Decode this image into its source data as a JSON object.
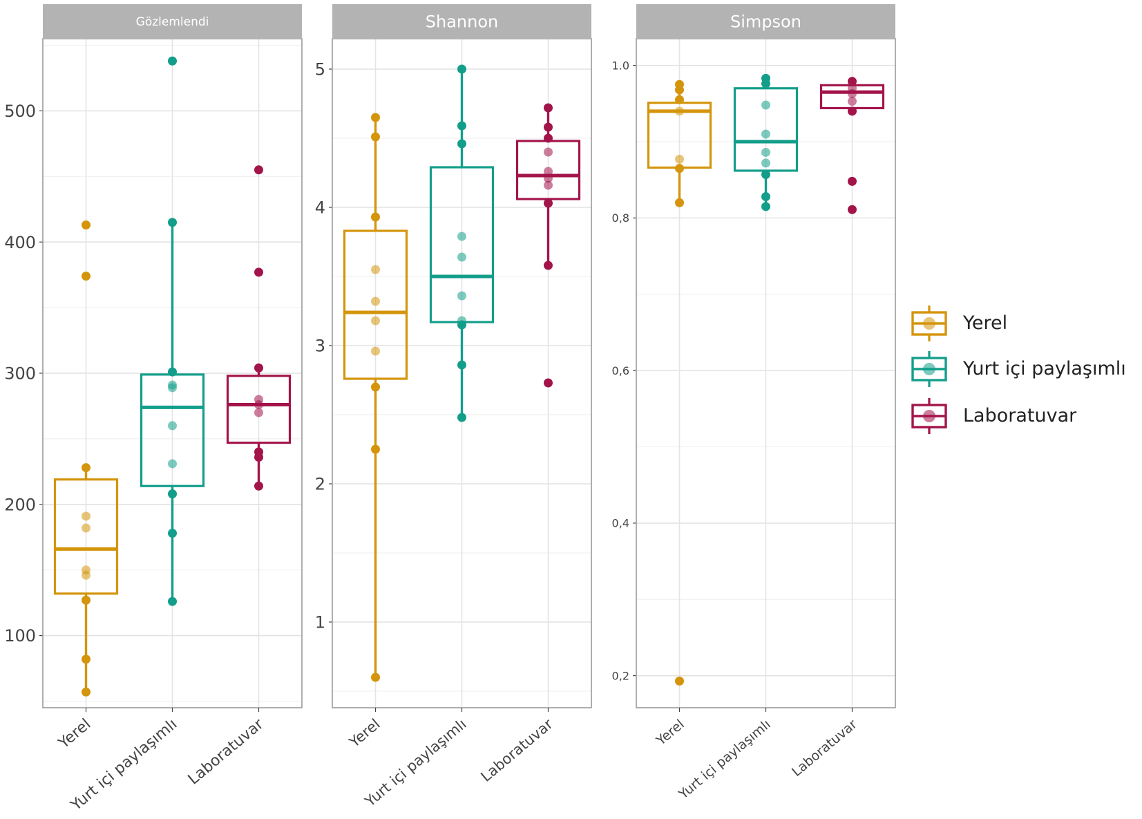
{
  "colors": {
    "Yerel": "#d4950c",
    "Yurt içi paylaşımlı": "#139e8b",
    "Laboratuvar": "#a3144a"
  },
  "legend": {
    "items": [
      {
        "label": "Yerel",
        "color": "#d4950c"
      },
      {
        "label": "Yurt içi paylaşımlı",
        "color": "#139e8b"
      },
      {
        "label": "Laboratuvar",
        "color": "#a3144a"
      }
    ]
  },
  "chart_data": [
    {
      "type": "box",
      "title": "Gözlemlendi",
      "categories": [
        "Yerel",
        "Yurt içi paylaşımlı",
        "Laboratuvar"
      ],
      "ylim": [
        45,
        555
      ],
      "yticks": [
        100,
        200,
        300,
        400,
        500
      ],
      "ytick_labels": [
        "100",
        "200",
        "300",
        "400",
        "500"
      ],
      "grid": true,
      "series": [
        {
          "name": "Yerel",
          "q1": 132,
          "median": 166,
          "q3": 219,
          "whisker_low": 57,
          "whisker_high": 228,
          "points": [
            413,
            374,
            228,
            191,
            182,
            150,
            146,
            127,
            82,
            57
          ]
        },
        {
          "name": "Yurt içi paylaşımlı",
          "q1": 214,
          "median": 274,
          "q3": 299,
          "whisker_low": 126,
          "whisker_high": 415,
          "points": [
            538,
            415,
            301,
            291,
            289,
            260,
            231,
            208,
            178,
            126
          ]
        },
        {
          "name": "Laboratuvar",
          "q1": 247,
          "median": 276,
          "q3": 298,
          "whisker_low": 214,
          "whisker_high": 304,
          "points": [
            455,
            377,
            304,
            280,
            276,
            270,
            240,
            236,
            214
          ]
        }
      ]
    },
    {
      "type": "box",
      "title": "Shannon",
      "categories": [
        "Yerel",
        "Yurt içi paylaşımlı",
        "Laboratuvar"
      ],
      "ylim": [
        0.38,
        5.22
      ],
      "yticks": [
        1,
        2,
        3,
        4,
        5
      ],
      "ytick_labels": [
        "1",
        "2",
        "3",
        "4",
        "5"
      ],
      "grid": true,
      "series": [
        {
          "name": "Yerel",
          "q1": 2.76,
          "median": 3.24,
          "q3": 3.83,
          "whisker_low": 0.6,
          "whisker_high": 4.65,
          "points": [
            4.65,
            4.51,
            3.93,
            3.55,
            3.32,
            3.18,
            2.96,
            2.7,
            2.25,
            0.6
          ]
        },
        {
          "name": "Yurt içi paylaşımlı",
          "q1": 3.17,
          "median": 3.5,
          "q3": 4.29,
          "whisker_low": 2.48,
          "whisker_high": 5.0,
          "points": [
            5.0,
            4.59,
            4.46,
            3.79,
            3.64,
            3.36,
            3.18,
            3.15,
            2.86,
            2.48
          ]
        },
        {
          "name": "Laboratuvar",
          "q1": 4.06,
          "median": 4.23,
          "q3": 4.48,
          "whisker_low": 3.58,
          "whisker_high": 4.72,
          "points": [
            4.72,
            4.58,
            4.5,
            4.4,
            4.26,
            4.21,
            4.16,
            4.03,
            3.58,
            2.73
          ]
        }
      ]
    },
    {
      "type": "box",
      "title": "Simpson",
      "categories": [
        "Yerel",
        "Yurt içi paylaşımlı",
        "Laboratuvar"
      ],
      "ylim": [
        0.158,
        1.035
      ],
      "yticks": [
        0.2,
        0.4,
        0.6,
        0.8,
        1.0
      ],
      "ytick_labels": [
        "0,2",
        "0,4",
        "0,6",
        "0,8",
        "1.0"
      ],
      "grid": true,
      "series": [
        {
          "name": "Yerel",
          "q1": 0.866,
          "median": 0.94,
          "q3": 0.951,
          "whisker_low": 0.82,
          "whisker_high": 0.975,
          "points": [
            0.975,
            0.968,
            0.955,
            0.94,
            0.877,
            0.865,
            0.82,
            0.193
          ]
        },
        {
          "name": "Yurt içi paylaşımlı",
          "q1": 0.862,
          "median": 0.9,
          "q3": 0.97,
          "whisker_low": 0.815,
          "whisker_high": 0.983,
          "points": [
            0.983,
            0.976,
            0.948,
            0.91,
            0.886,
            0.872,
            0.857,
            0.828,
            0.815
          ]
        },
        {
          "name": "Laboratuvar",
          "q1": 0.944,
          "median": 0.965,
          "q3": 0.974,
          "whisker_low": 0.94,
          "whisker_high": 0.979,
          "points": [
            0.979,
            0.97,
            0.963,
            0.953,
            0.94,
            0.848,
            0.811
          ]
        }
      ]
    }
  ]
}
